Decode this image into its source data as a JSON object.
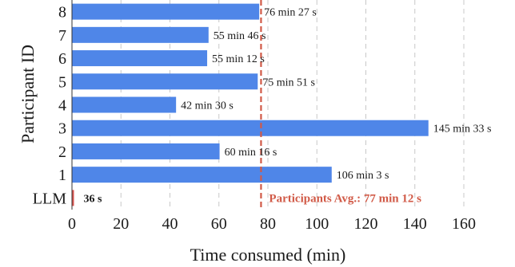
{
  "chart_data": {
    "type": "bar",
    "orientation": "horizontal",
    "categories": [
      "LLM",
      "1",
      "2",
      "3",
      "4",
      "5",
      "6",
      "7",
      "8"
    ],
    "values": [
      0.6,
      106.05,
      60.27,
      145.55,
      42.5,
      75.85,
      55.2,
      55.77,
      76.45
    ],
    "value_labels": [
      "36 s",
      "106 min 3 s",
      "60 min 16 s",
      "145 min 33 s",
      "42 min 30 s",
      "75 min 51 s",
      "55 min 12 s",
      "55 min 46 s",
      "76 min 27 s"
    ],
    "xlabel": "Time consumed (min)",
    "ylabel": "Participant ID",
    "xlim": [
      0,
      160
    ],
    "xticks": [
      0,
      20,
      40,
      60,
      80,
      100,
      120,
      140,
      160
    ],
    "grid": "vertical-dashed",
    "reference_line": {
      "value": 77.2,
      "label": "Participants Avg.: 77 min 12 s"
    },
    "colors": {
      "bar": "#4f86e8",
      "llm_bar": "#d9534f",
      "reference": "#d15a47",
      "grid": "#c8c8c8"
    }
  }
}
